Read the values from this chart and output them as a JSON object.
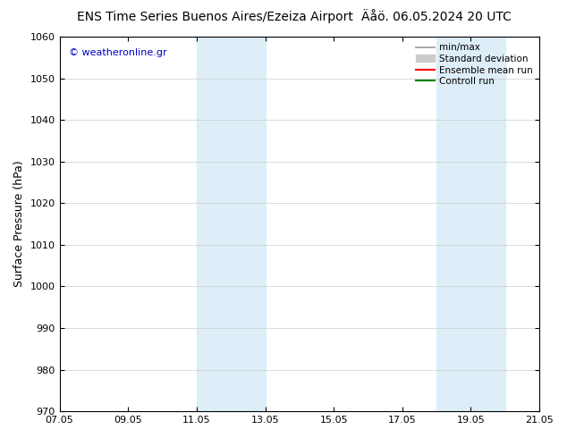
{
  "title_left": "ENS Time Series Buenos Aires/Ezeiza Airport",
  "title_right": "Äåö. 06.05.2024 20 UTC",
  "ylabel": "Surface Pressure (hPa)",
  "ylim": [
    970,
    1060
  ],
  "yticks": [
    970,
    980,
    990,
    1000,
    1010,
    1020,
    1030,
    1040,
    1050,
    1060
  ],
  "xlim_start": 0,
  "xlim_end": 14,
  "xtick_positions": [
    0,
    2,
    4,
    6,
    8,
    10,
    12,
    14
  ],
  "xtick_labels": [
    "07.05",
    "09.05",
    "11.05",
    "13.05",
    "15.05",
    "17.05",
    "19.05",
    "21.05"
  ],
  "shaded_bands": [
    {
      "x_start": 4.0,
      "x_end": 4.5
    },
    {
      "x_start": 4.5,
      "x_end": 6.0
    },
    {
      "x_start": 11.0,
      "x_end": 11.5
    },
    {
      "x_start": 11.5,
      "x_end": 13.0
    }
  ],
  "shade_color": "#ddeef8",
  "watermark_text": "© weatheronline.gr",
  "watermark_color": "#0000cc",
  "legend_items": [
    {
      "label": "min/max",
      "type": "line",
      "color": "#999999",
      "lw": 1.2
    },
    {
      "label": "Standard deviation",
      "type": "rect",
      "color": "#cccccc"
    },
    {
      "label": "Ensemble mean run",
      "type": "line",
      "color": "#ff0000",
      "lw": 1.5
    },
    {
      "label": "Controll run",
      "type": "line",
      "color": "#008000",
      "lw": 1.5
    }
  ],
  "bg_color": "#ffffff",
  "grid_color": "#cccccc",
  "title_fontsize": 10,
  "tick_fontsize": 8,
  "ylabel_fontsize": 9
}
